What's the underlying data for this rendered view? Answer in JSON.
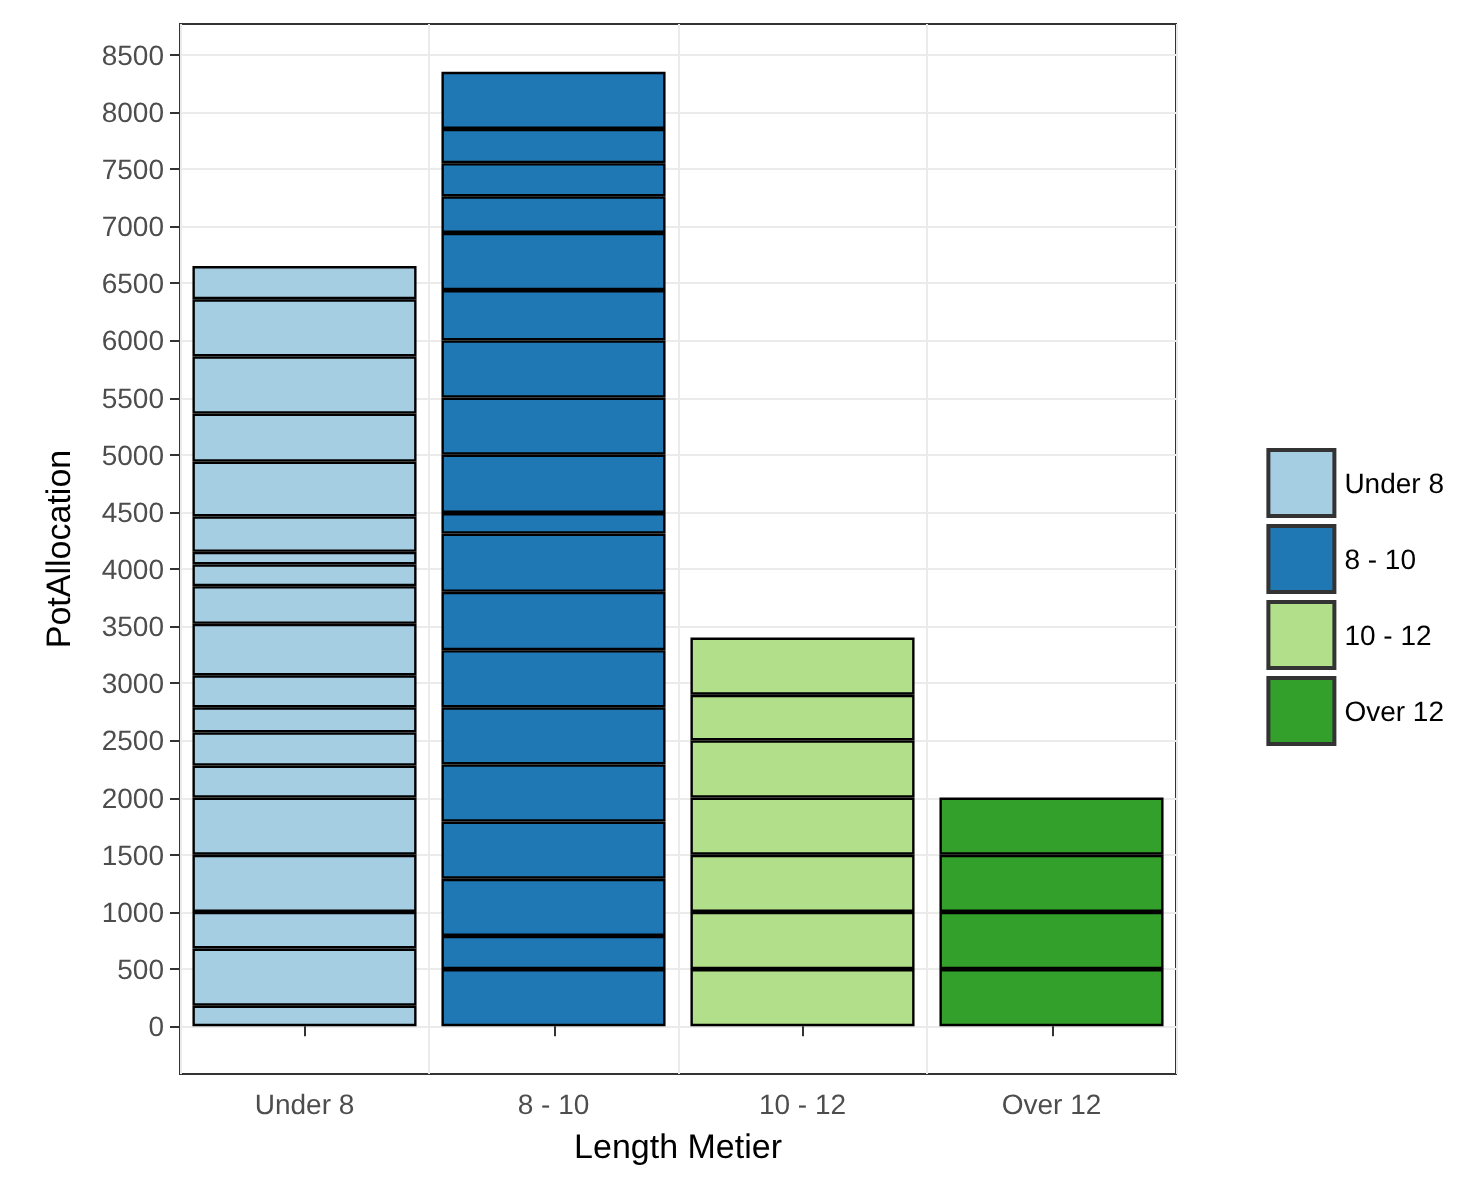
{
  "chart_data": {
    "type": "bar",
    "stacked": true,
    "xlabel": "Length Metier",
    "ylabel": "PotAllocation",
    "categories": [
      "Under 8",
      "8 - 10",
      "10 - 12",
      "Over 12"
    ],
    "legend": "right",
    "grid": true,
    "ylim": [
      -418,
      8768
    ],
    "yticks": [
      0,
      500,
      1000,
      1500,
      2000,
      2500,
      3000,
      3500,
      4000,
      4500,
      5000,
      5500,
      6000,
      6500,
      7000,
      7500,
      8000,
      8500
    ],
    "series": [
      {
        "name": "Under 8",
        "color": "#a6cee3",
        "values": [
          180,
          null,
          null,
          null
        ]
      },
      {
        "name": "8 - 10",
        "color": "#1f78b4",
        "values": [
          null,
          500,
          null,
          null
        ]
      },
      {
        "name": "10 - 12",
        "color": "#b2df8a",
        "values": [
          null,
          null,
          500,
          null
        ]
      },
      {
        "name": "Over 12",
        "color": "#33a02c",
        "values": [
          null,
          null,
          null,
          500
        ]
      },
      {
        "values": [
          500,
          290,
          500,
          500
        ],
        "colors": [
          "#a6cee3",
          "#1f78b4",
          "#b2df8a",
          "#33a02c"
        ]
      },
      {
        "values": [
          320,
          500,
          500,
          500
        ],
        "colors": [
          "#a6cee3",
          "#1f78b4",
          "#b2df8a",
          "#33a02c"
        ]
      },
      {
        "values": [
          500,
          500,
          500,
          500
        ],
        "colors": [
          "#a6cee3",
          "#1f78b4",
          "#b2df8a",
          "#33a02c"
        ]
      },
      {
        "values": [
          500,
          500,
          500,
          null
        ],
        "colors": [
          "#a6cee3",
          "#1f78b4",
          "#b2df8a",
          null
        ]
      },
      {
        "values": [
          280,
          500,
          400,
          null
        ],
        "colors": [
          "#a6cee3",
          "#1f78b4",
          "#b2df8a",
          null
        ]
      },
      {
        "values": [
          290,
          500,
          500,
          null
        ],
        "colors": [
          "#a6cee3",
          "#1f78b4",
          "#b2df8a",
          null
        ]
      },
      {
        "values": [
          220,
          510,
          null,
          null
        ],
        "colors": [
          "#a6cee3",
          "#1f78b4",
          null,
          null
        ]
      },
      {
        "values": [
          280,
          510,
          null,
          null
        ],
        "colors": [
          "#a6cee3",
          "#1f78b4",
          null,
          null
        ]
      },
      {
        "values": [
          450,
          180,
          null,
          null
        ],
        "colors": [
          "#a6cee3",
          "#1f78b4",
          null,
          null
        ]
      },
      {
        "values": [
          330,
          510,
          null,
          null
        ],
        "colors": [
          "#a6cee3",
          "#1f78b4",
          null,
          null
        ]
      },
      {
        "values": [
          190,
          500,
          null,
          null
        ],
        "colors": [
          "#a6cee3",
          "#1f78b4",
          null,
          null
        ]
      },
      {
        "values": [
          110,
          500,
          null,
          null
        ],
        "colors": [
          "#a6cee3",
          "#1f78b4",
          null,
          null
        ]
      },
      {
        "values": [
          310,
          440,
          null,
          null
        ],
        "colors": [
          "#a6cee3",
          "#1f78b4",
          null,
          null
        ]
      },
      {
        "values": [
          480,
          500,
          null,
          null
        ],
        "colors": [
          "#a6cee3",
          "#1f78b4",
          null,
          null
        ]
      },
      {
        "values": [
          420,
          320,
          null,
          null
        ],
        "colors": [
          "#a6cee3",
          "#1f78b4",
          null,
          null
        ]
      },
      {
        "values": [
          500,
          290,
          null,
          null
        ],
        "colors": [
          "#a6cee3",
          "#1f78b4",
          null,
          null
        ]
      },
      {
        "values": [
          500,
          300,
          null,
          null
        ],
        "colors": [
          "#a6cee3",
          "#1f78b4",
          null,
          null
        ]
      },
      {
        "values": [
          290,
          500,
          null,
          null
        ],
        "colors": [
          "#a6cee3",
          "#1f78b4",
          null,
          null
        ]
      }
    ]
  }
}
